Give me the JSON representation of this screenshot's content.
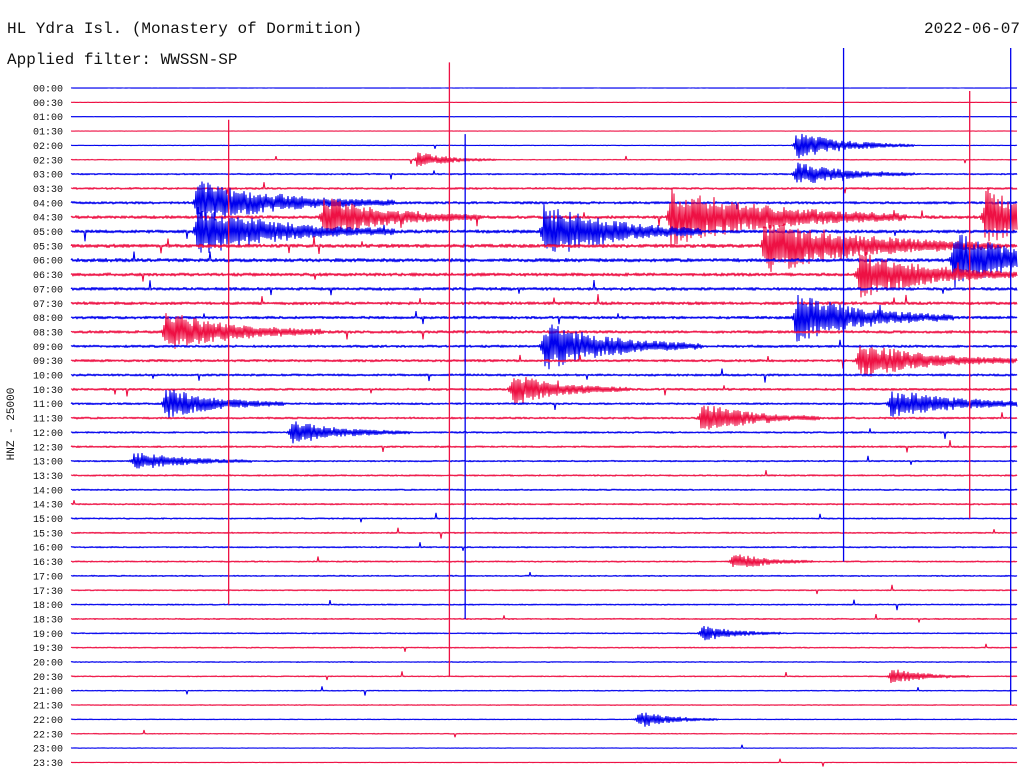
{
  "header": {
    "station": "HL Ydra Isl. (Monastery of Dormition)",
    "filter": "Applied filter: WWSSN-SP",
    "date": "2022-06-07",
    "channel": "HNZ - 25000"
  },
  "colors": {
    "trace_a": "#0000ee",
    "trace_b": "#ee1144",
    "text": "#111111",
    "background": "#ffffff"
  },
  "chart_data": {
    "type": "line",
    "title": "HL Ydra Isl. (Monastery of Dormition)",
    "subtitle": "Applied filter: WWSSN-SP",
    "date": "2022-06-07",
    "ylabel": "HNZ - 25000",
    "row_labels": [
      "00:00",
      "00:30",
      "01:00",
      "01:30",
      "02:00",
      "02:30",
      "03:00",
      "03:30",
      "04:00",
      "04:30",
      "05:00",
      "05:30",
      "06:00",
      "06:30",
      "07:00",
      "07:30",
      "08:00",
      "08:30",
      "09:00",
      "09:30",
      "10:00",
      "10:30",
      "11:00",
      "11:30",
      "12:00",
      "12:30",
      "13:00",
      "13:30",
      "14:00",
      "14:30",
      "15:00",
      "15:30",
      "16:00",
      "16:30",
      "17:00",
      "17:30",
      "18:00",
      "18:30",
      "19:00",
      "19:30",
      "20:00",
      "20:30",
      "21:00",
      "21:30",
      "22:00",
      "22:30",
      "23:00",
      "23:30"
    ],
    "row_color_order": [
      "trace_a",
      "trace_b"
    ],
    "row_noise_level": [
      0.1,
      0.1,
      0.1,
      0.15,
      0.2,
      0.3,
      0.6,
      0.8,
      1.0,
      1.2,
      1.3,
      1.4,
      1.4,
      1.3,
      1.2,
      1.2,
      1.1,
      1.1,
      1.0,
      1.0,
      0.9,
      0.9,
      0.8,
      0.8,
      0.7,
      0.7,
      0.6,
      0.6,
      0.6,
      0.6,
      0.55,
      0.55,
      0.55,
      0.55,
      0.5,
      0.5,
      0.5,
      0.5,
      0.45,
      0.45,
      0.4,
      0.4,
      0.35,
      0.35,
      0.3,
      0.3,
      0.2,
      0.2
    ],
    "events": [
      {
        "row": 4,
        "minute": 23,
        "amplitude": 14,
        "duration": 1.5
      },
      {
        "row": 5,
        "minute": 11,
        "amplitude": 8,
        "duration": 1.0
      },
      {
        "row": 6,
        "minute": 23,
        "amplitude": 12,
        "duration": 1.5
      },
      {
        "row": 8,
        "minute": 4,
        "amplitude": 22,
        "duration": 2.5
      },
      {
        "row": 9,
        "minute": 8,
        "amplitude": 20,
        "duration": 2.0
      },
      {
        "row": 9,
        "minute": 19,
        "amplitude": 30,
        "duration": 3.0
      },
      {
        "row": 9,
        "minute": 29,
        "amplitude": 30,
        "duration": 1.5
      },
      {
        "row": 10,
        "minute": 4,
        "amplitude": 25,
        "duration": 2.5
      },
      {
        "row": 10,
        "minute": 15,
        "amplitude": 30,
        "duration": 2.0
      },
      {
        "row": 11,
        "minute": 22,
        "amplitude": 28,
        "duration": 3.0
      },
      {
        "row": 12,
        "minute": 28,
        "amplitude": 28,
        "duration": 2.0
      },
      {
        "row": 13,
        "minute": 25,
        "amplitude": 25,
        "duration": 2.0
      },
      {
        "row": 16,
        "minute": 23,
        "amplitude": 25,
        "duration": 2.0
      },
      {
        "row": 17,
        "minute": 3,
        "amplitude": 20,
        "duration": 2.0
      },
      {
        "row": 18,
        "minute": 15,
        "amplitude": 25,
        "duration": 2.0
      },
      {
        "row": 19,
        "minute": 25,
        "amplitude": 18,
        "duration": 2.0
      },
      {
        "row": 21,
        "minute": 14,
        "amplitude": 16,
        "duration": 1.5
      },
      {
        "row": 22,
        "minute": 3,
        "amplitude": 16,
        "duration": 1.5
      },
      {
        "row": 22,
        "minute": 26,
        "amplitude": 15,
        "duration": 2.0
      },
      {
        "row": 23,
        "minute": 20,
        "amplitude": 16,
        "duration": 1.5
      },
      {
        "row": 24,
        "minute": 7,
        "amplitude": 12,
        "duration": 1.5
      },
      {
        "row": 26,
        "minute": 2,
        "amplitude": 10,
        "duration": 1.5
      },
      {
        "row": 33,
        "minute": 21,
        "amplitude": 9,
        "duration": 1.0
      },
      {
        "row": 38,
        "minute": 20,
        "amplitude": 8,
        "duration": 1.0
      },
      {
        "row": 41,
        "minute": 26,
        "amplitude": 8,
        "duration": 1.0
      },
      {
        "row": 44,
        "minute": 18,
        "amplitude": 9,
        "duration": 1.0
      }
    ],
    "spikes": [
      {
        "minute": 5,
        "row_from": 5,
        "row_to": 36
      },
      {
        "minute": 12,
        "row_from": 1,
        "row_to": 41
      },
      {
        "minute": 12.5,
        "row_from": 6,
        "row_to": 37
      },
      {
        "minute": 24.5,
        "row_from": 0,
        "row_to": 33
      },
      {
        "minute": 28.5,
        "row_from": 3,
        "row_to": 30
      },
      {
        "minute": 29.8,
        "row_from": 0,
        "row_to": 43
      }
    ]
  }
}
